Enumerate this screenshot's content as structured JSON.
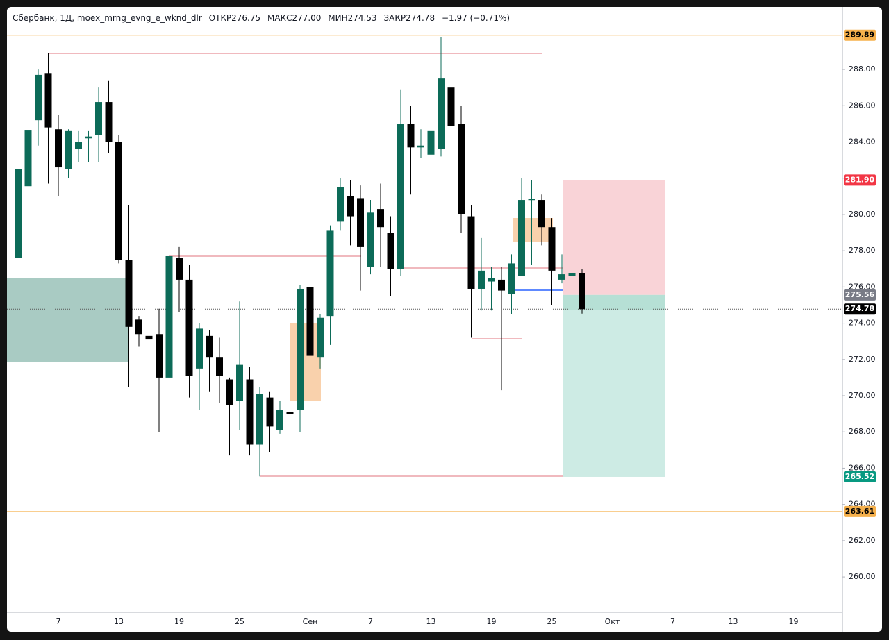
{
  "chart_data": {
    "type": "candlestick",
    "legend": {
      "name": "Сбербанк, 1Д, moex_mrng_evng_e_wknd_dlr",
      "fields": [
        {
          "label": "ОТКР",
          "value": "276.75"
        },
        {
          "label": "МАКС",
          "value": "277.00"
        },
        {
          "label": "МИН",
          "value": "274.53"
        },
        {
          "label": "ЗАКР",
          "value": "274.78"
        }
      ],
      "change": "−1.97 (−0.71%)"
    },
    "categories": [
      null,
      null,
      null,
      null,
      "7",
      null,
      null,
      null,
      null,
      null,
      "13",
      null,
      null,
      null,
      null,
      null,
      "19",
      null,
      null,
      null,
      null,
      null,
      "25",
      null,
      null,
      null,
      null,
      null,
      null,
      "Сен",
      null,
      null,
      null,
      null,
      null,
      "7",
      null,
      null,
      null,
      null,
      null,
      "13",
      null,
      null,
      null,
      null,
      null,
      "19",
      null,
      null,
      null,
      null,
      null,
      "25",
      null,
      null,
      null,
      null,
      null,
      "Окт",
      null,
      null,
      null,
      null,
      null,
      "7",
      null,
      null,
      null,
      null,
      null,
      "13",
      null,
      null,
      null,
      null,
      null,
      "19",
      null,
      null,
      null
    ],
    "open": [
      277.6,
      281.56,
      285.2,
      287.8,
      284.7,
      282.5,
      283.6,
      284.2,
      284.4,
      286.2,
      284.0,
      277.5,
      274.2,
      273.3,
      273.4,
      271.0,
      277.6,
      276.4,
      271.5,
      273.3,
      272.1,
      270.9,
      269.7,
      270.9,
      267.3,
      269.9,
      268.1,
      269.1,
      269.2,
      276.0,
      272.1,
      274.4,
      279.6,
      281.0,
      280.9,
      277.1,
      280.3,
      279.0,
      277.0,
      285.0,
      283.7,
      283.3,
      283.6,
      287.0,
      285.0,
      279.9,
      275.9,
      276.3,
      276.4,
      275.6,
      276.6,
      280.8,
      280.8,
      279.3,
      276.4,
      276.6,
      276.75,
      null,
      null,
      null,
      null,
      null,
      null,
      null,
      null,
      null,
      null,
      null,
      null,
      null,
      null,
      null,
      null,
      null,
      null,
      null,
      null,
      null,
      null,
      null,
      null
    ],
    "high": [
      282.5,
      285.0,
      288.0,
      288.9,
      285.5,
      284.7,
      284.6,
      284.6,
      287.0,
      287.4,
      284.4,
      280.5,
      274.4,
      273.7,
      274.8,
      278.3,
      278.2,
      277.2,
      274.0,
      273.6,
      273.2,
      271.0,
      275.2,
      271.6,
      270.5,
      270.2,
      269.7,
      269.8,
      276.1,
      277.8,
      274.5,
      279.4,
      282.0,
      281.9,
      281.6,
      280.8,
      281.7,
      279.9,
      286.9,
      286.0,
      284.7,
      285.9,
      289.8,
      288.4,
      286.0,
      280.5,
      278.7,
      277.1,
      277.1,
      277.8,
      282.0,
      281.9,
      281.1,
      279.8,
      277.8,
      277.8,
      277.0,
      null,
      null,
      null,
      null,
      null,
      null,
      null,
      null,
      null,
      null,
      null,
      null,
      null,
      null,
      null,
      null,
      null,
      null,
      null,
      null,
      null,
      null,
      null,
      null
    ],
    "low": [
      277.6,
      281.0,
      283.8,
      281.7,
      281.0,
      282.0,
      282.9,
      282.9,
      282.9,
      283.4,
      277.3,
      270.5,
      272.7,
      272.5,
      268.0,
      269.2,
      274.6,
      269.9,
      269.2,
      270.2,
      269.6,
      266.7,
      268.1,
      266.7,
      265.55,
      266.9,
      267.9,
      268.2,
      268.0,
      271.0,
      271.5,
      272.8,
      279.1,
      278.3,
      275.8,
      276.7,
      277.1,
      275.5,
      276.6,
      281.1,
      283.1,
      283.3,
      283.2,
      284.4,
      279.0,
      273.2,
      274.7,
      274.7,
      270.3,
      274.5,
      276.6,
      277.2,
      278.3,
      275.0,
      276.2,
      275.7,
      274.53,
      null,
      null,
      null,
      null,
      null,
      null,
      null,
      null,
      null,
      null,
      null,
      null,
      null,
      null,
      null,
      null,
      null,
      null,
      null,
      null,
      null,
      null,
      null,
      null
    ],
    "close": [
      282.5,
      284.63,
      287.7,
      284.8,
      282.6,
      284.6,
      284.0,
      284.3,
      286.2,
      284.0,
      277.5,
      273.8,
      273.4,
      273.1,
      271.0,
      277.7,
      276.4,
      271.1,
      273.7,
      272.1,
      271.1,
      269.5,
      271.7,
      267.3,
      270.1,
      268.3,
      269.2,
      269.0,
      275.9,
      272.2,
      274.3,
      279.1,
      281.5,
      279.9,
      278.2,
      280.1,
      279.3,
      277.0,
      285.0,
      283.7,
      283.8,
      284.6,
      287.5,
      284.9,
      280.0,
      275.9,
      276.9,
      276.5,
      275.8,
      277.3,
      280.8,
      280.85,
      279.3,
      276.9,
      276.7,
      276.75,
      274.78,
      null,
      null,
      null,
      null,
      null,
      null,
      null,
      null,
      null,
      null,
      null,
      null,
      null,
      null,
      null,
      null,
      null,
      null,
      null,
      null,
      null,
      null,
      null,
      null
    ],
    "up_color": "#0c6b58",
    "down_color": "#000000",
    "ylim": [
      258.05,
      291.45
    ],
    "yticks": [
      {
        "value": 260,
        "label": "260.00"
      },
      {
        "value": 262,
        "label": "262.00"
      },
      {
        "value": 264,
        "label": "264.00"
      },
      {
        "value": 266,
        "label": "266.00"
      },
      {
        "value": 268,
        "label": "268.00"
      },
      {
        "value": 270,
        "label": "270.00"
      },
      {
        "value": 272,
        "label": "272.00"
      },
      {
        "value": 274,
        "label": "274.00"
      },
      {
        "value": 276,
        "label": "276.00"
      },
      {
        "value": 278,
        "label": "278.00"
      },
      {
        "value": 280,
        "label": "280.00"
      },
      {
        "value": 282,
        "label": "282.00"
      },
      {
        "value": 284,
        "label": "284.00"
      },
      {
        "value": 286,
        "label": "286.00"
      },
      {
        "value": 288,
        "label": "288.00"
      }
    ],
    "levels": {
      "values": [
        289.89,
        263.61
      ],
      "color": "#f5b04c"
    },
    "position": {
      "stop": {
        "value": 281.9,
        "label": "281.90"
      },
      "entry": 275.56,
      "target": 265.52,
      "stop_color": "#f23645",
      "entry_color": "#787b86",
      "target_color": "#089981"
    }
  }
}
